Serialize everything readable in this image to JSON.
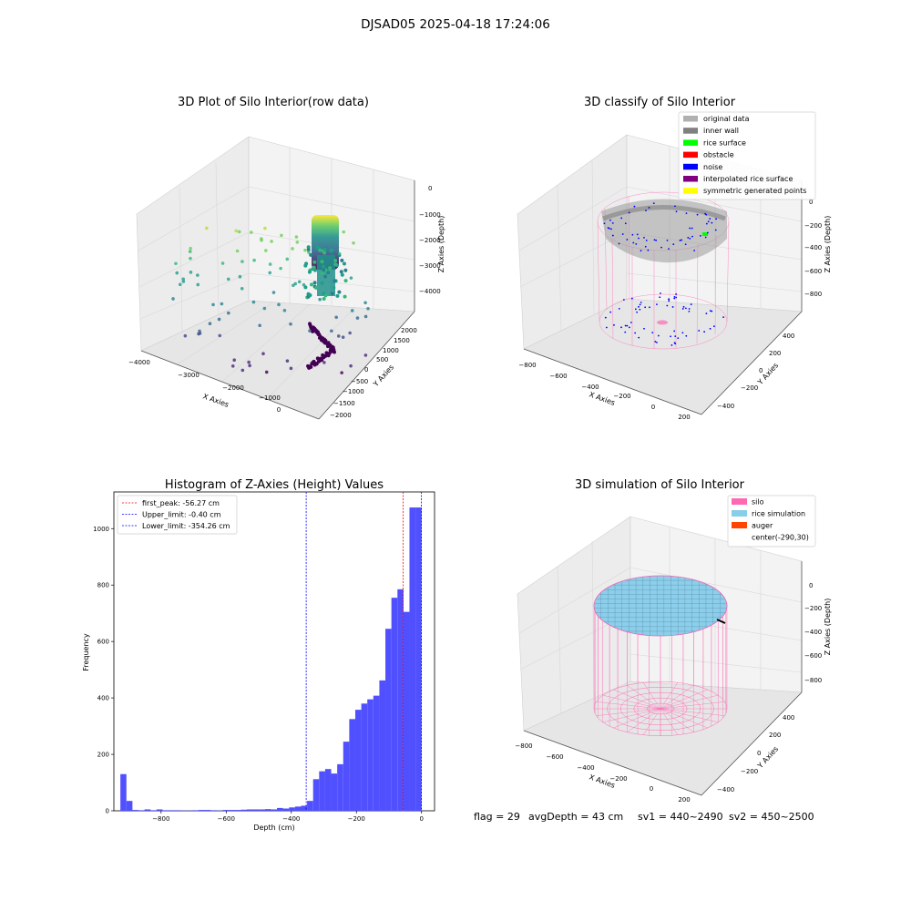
{
  "suptitle": "DJSAD05 2025-04-18 17:24:06",
  "panels": {
    "raw": {
      "title": "3D Plot of Silo Interior(row data)",
      "xlabel": "X Axies",
      "ylabel": "Y Axies",
      "zlabel": "Z Axies (Depth)",
      "xticks": [
        "−4000",
        "−3000",
        "−2000",
        "−1000",
        "0"
      ],
      "yticks": [
        "−2000",
        "−1500",
        "−1000",
        "−500",
        "0",
        "500",
        "1000",
        "1500",
        "2000"
      ],
      "zticks": [
        "0",
        "−1000",
        "−2000",
        "−3000",
        "−4000"
      ]
    },
    "classify": {
      "title": "3D classify of Silo Interior",
      "xlabel": "X Axies",
      "ylabel": "Y Axies",
      "zlabel": "Z Axies (Depth)",
      "xticks": [
        "−800",
        "−600",
        "−400",
        "−200",
        "0",
        "200"
      ],
      "yticks": [
        "−400",
        "−200",
        "0",
        "200",
        "400"
      ],
      "zticks": [
        "0",
        "−200",
        "−400",
        "−600",
        "−800"
      ],
      "legend": [
        {
          "label": "original data",
          "color": "#b0b0b0"
        },
        {
          "label": "inner wall",
          "color": "#808080"
        },
        {
          "label": "rice surface",
          "color": "#00ff00"
        },
        {
          "label": "obstacle",
          "color": "#ff0000"
        },
        {
          "label": "noise",
          "color": "#0000ff"
        },
        {
          "label": "interpolated rice surface",
          "color": "#800080"
        },
        {
          "label": "symmetric generated points",
          "color": "#ffff00"
        }
      ]
    },
    "histogram": {
      "title": "Histogram of Z-Axies (Height) Values",
      "xlabel": "Depth (cm)",
      "ylabel": "Frequency",
      "legend": [
        {
          "label": "first_peak: -56.27 cm",
          "color": "#ff0000"
        },
        {
          "label": "Upper_limit: -0.40 cm",
          "color": "#0000ff"
        },
        {
          "label": "Lower_limit: -354.26 cm",
          "color": "#0000ff"
        }
      ]
    },
    "simulation": {
      "title": "3D simulation of Silo Interior",
      "xlabel": "X Axies",
      "ylabel": "Y Axies",
      "zlabel": "Z Axies (Depth)",
      "xticks": [
        "−800",
        "−600",
        "−400",
        "−200",
        "0",
        "200"
      ],
      "yticks": [
        "−400",
        "−200",
        "0",
        "200",
        "400"
      ],
      "zticks": [
        "0",
        "−200",
        "−400",
        "−600",
        "−800"
      ],
      "legend": [
        {
          "label": "silo",
          "color": "#ff69b4"
        },
        {
          "label": "rice simulation",
          "color": "#87ceeb"
        },
        {
          "label": "auger",
          "color": "#ff4500"
        },
        {
          "label": "center(-290,30)",
          "color": "none"
        }
      ]
    }
  },
  "footer": {
    "flag": "flag = 29",
    "avg": "avgDepth = 43 cm",
    "sv1": "sv1 = 440~2490",
    "sv2": "sv2 = 450~2500"
  },
  "chart_data": [
    {
      "type": "histogram",
      "title": "Histogram of Z-Axies (Height) Values",
      "xlabel": "Depth (cm)",
      "ylabel": "Frequency",
      "xlim": [
        -945,
        40
      ],
      "ylim": [
        0,
        1130
      ],
      "xticks": [
        -800,
        -600,
        -400,
        -200,
        0
      ],
      "yticks": [
        0,
        200,
        400,
        600,
        800,
        1000
      ],
      "bin_width": 18.5,
      "bins": [
        {
          "x0": -925,
          "count": 130
        },
        {
          "x0": -906.5,
          "count": 35
        },
        {
          "x0": -888,
          "count": 3
        },
        {
          "x0": -869.5,
          "count": 2
        },
        {
          "x0": -851,
          "count": 5
        },
        {
          "x0": -832.5,
          "count": 2
        },
        {
          "x0": -814,
          "count": 5
        },
        {
          "x0": -795.5,
          "count": 2
        },
        {
          "x0": -777,
          "count": 2
        },
        {
          "x0": -758.5,
          "count": 2
        },
        {
          "x0": -740,
          "count": 1
        },
        {
          "x0": -721.5,
          "count": 1
        },
        {
          "x0": -703,
          "count": 2
        },
        {
          "x0": -684.5,
          "count": 3
        },
        {
          "x0": -666,
          "count": 3
        },
        {
          "x0": -647.5,
          "count": 2
        },
        {
          "x0": -629,
          "count": 1
        },
        {
          "x0": -610.5,
          "count": 3
        },
        {
          "x0": -592,
          "count": 3
        },
        {
          "x0": -573.5,
          "count": 3
        },
        {
          "x0": -555,
          "count": 4
        },
        {
          "x0": -536.5,
          "count": 5
        },
        {
          "x0": -518,
          "count": 5
        },
        {
          "x0": -499.5,
          "count": 5
        },
        {
          "x0": -481,
          "count": 6
        },
        {
          "x0": -462.5,
          "count": 5
        },
        {
          "x0": -444,
          "count": 10
        },
        {
          "x0": -425.5,
          "count": 8
        },
        {
          "x0": -407,
          "count": 12
        },
        {
          "x0": -388.5,
          "count": 15
        },
        {
          "x0": -370,
          "count": 18
        },
        {
          "x0": -351.5,
          "count": 35
        },
        {
          "x0": -333,
          "count": 112
        },
        {
          "x0": -314.5,
          "count": 140
        },
        {
          "x0": -296,
          "count": 148
        },
        {
          "x0": -277.5,
          "count": 132
        },
        {
          "x0": -259,
          "count": 165
        },
        {
          "x0": -240.5,
          "count": 245
        },
        {
          "x0": -222,
          "count": 325
        },
        {
          "x0": -203.5,
          "count": 358
        },
        {
          "x0": -185,
          "count": 380
        },
        {
          "x0": -166.5,
          "count": 395
        },
        {
          "x0": -148,
          "count": 408
        },
        {
          "x0": -129.5,
          "count": 462
        },
        {
          "x0": -111,
          "count": 645
        },
        {
          "x0": -92.5,
          "count": 755
        },
        {
          "x0": -74,
          "count": 785
        },
        {
          "x0": -55.5,
          "count": 705
        },
        {
          "x0": -37,
          "count": 1075
        },
        {
          "x0": -18.5,
          "count": 1075
        }
      ],
      "vlines": [
        {
          "name": "first_peak",
          "x": -56.27,
          "color": "#ff0000"
        },
        {
          "name": "Upper_limit",
          "x": -0.4,
          "color": "#0000ff"
        },
        {
          "name": "Lower_limit",
          "x": -354.26,
          "color": "#0000ff"
        }
      ],
      "bar_color": "#5050ff"
    }
  ]
}
